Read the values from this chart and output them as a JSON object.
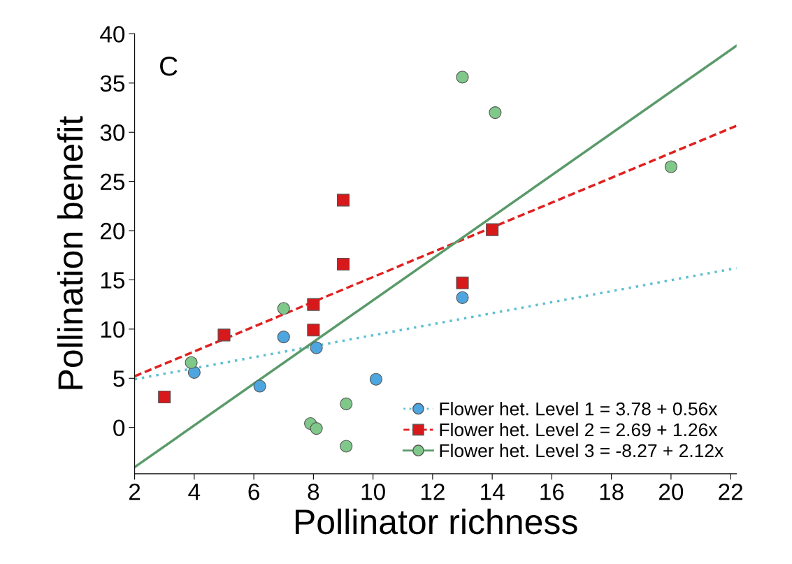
{
  "chart_data": {
    "type": "scatter",
    "xlabel": "Pollinator richness",
    "ylabel": "Pollination benefit",
    "xlim": [
      2,
      22.2
    ],
    "ylim": [
      -4.7,
      40
    ],
    "xticks": [
      2,
      4,
      6,
      8,
      10,
      12,
      14,
      16,
      18,
      20,
      22
    ],
    "yticks": [
      0,
      5,
      10,
      15,
      20,
      25,
      30,
      35,
      40
    ],
    "grid": false,
    "legend": "bottom right",
    "annotations": [
      "C"
    ],
    "series": [
      {
        "name": "Flower het. Level 1 = 3.78 + 0.56x",
        "color": "#4ea6e0",
        "marker": "circle",
        "x": [
          4,
          6.2,
          7,
          8.1,
          10.1,
          13
        ],
        "values": [
          5.6,
          4.2,
          9.2,
          8.1,
          4.9,
          13.2
        ]
      },
      {
        "name": "Flower het. Level 2 = 2.69 + 1.26x",
        "color": "#d7191c",
        "marker": "square",
        "x": [
          3,
          5,
          8,
          8,
          9,
          9,
          13,
          14
        ],
        "values": [
          3.1,
          9.4,
          12.5,
          9.9,
          23.1,
          16.6,
          14.7,
          20.1
        ]
      },
      {
        "name": "Flower het. Level 3 = -8.27 + 2.12x",
        "color": "#7fc88a",
        "marker": "circle",
        "x": [
          3.9,
          7,
          7.9,
          8.1,
          9.1,
          9.1,
          13,
          14.1,
          20
        ],
        "values": [
          6.6,
          12.1,
          0.4,
          -0.1,
          2.4,
          -1.9,
          35.6,
          32.0,
          26.5
        ]
      },
      {
        "type": "line",
        "color": "#5fc0d0",
        "line_style": "dotted",
        "x": [
          2,
          22.2
        ],
        "values": [
          4.9,
          16.2
        ]
      },
      {
        "type": "line",
        "color": "#e02020",
        "line_style": "dashed",
        "x": [
          2,
          22.2
        ],
        "values": [
          5.21,
          30.66
        ]
      },
      {
        "type": "line",
        "color": "#5a9a6a",
        "line_style": "solid",
        "x": [
          2,
          22.2
        ],
        "values": [
          -4.03,
          38.79
        ]
      }
    ]
  }
}
